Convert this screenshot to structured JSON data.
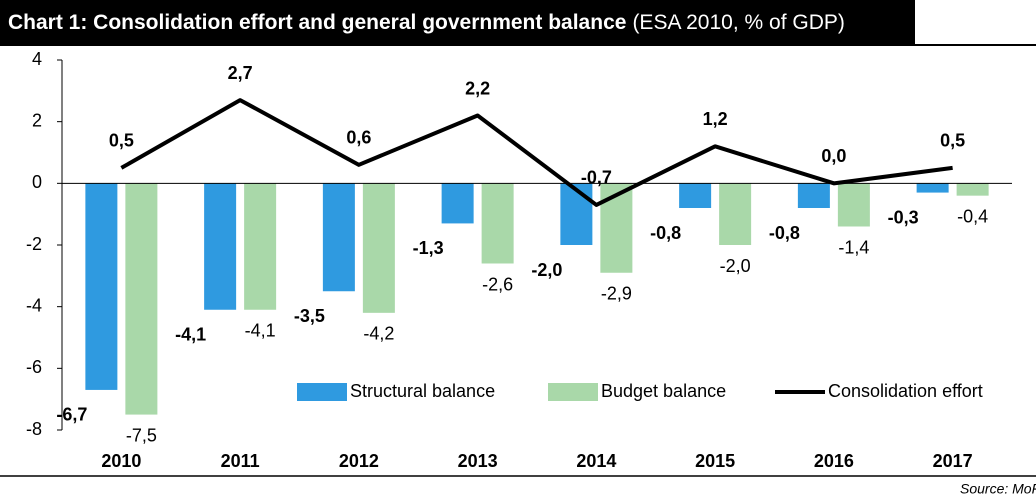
{
  "chart_data": {
    "type": "bar-line",
    "title": "Chart 1: Consolidation effort and general government balance",
    "subtitle": "(ESA 2010, % of GDP)",
    "source": "Source: MoF SR",
    "categories": [
      "2010",
      "2011",
      "2012",
      "2013",
      "2014",
      "2015",
      "2016",
      "2017"
    ],
    "ylim": [
      -8,
      4
    ],
    "yticks": [
      -8,
      -6,
      -4,
      -2,
      0,
      2,
      4
    ],
    "series": [
      {
        "name": "Structural balance",
        "kind": "bar",
        "color": "#2f9ae0",
        "values": [
          -6.7,
          -4.1,
          -3.5,
          -1.3,
          -2.0,
          -0.8,
          -0.8,
          -0.3
        ],
        "value_labels": [
          "-6,7",
          "-4,1",
          "-3,5",
          "-1,3",
          "-2,0",
          "-0,8",
          "-0,8",
          "-0,3"
        ]
      },
      {
        "name": "Budget balance",
        "kind": "bar",
        "color": "#a9d8a9",
        "values": [
          -7.5,
          -4.1,
          -4.2,
          -2.6,
          -2.9,
          -2.0,
          -1.4,
          -0.4
        ],
        "value_labels": [
          "-7,5",
          "-4,1",
          "-4,2",
          "-2,6",
          "-2,9",
          "-2,0",
          "-1,4",
          "-0,4"
        ]
      },
      {
        "name": "Consolidation effort",
        "kind": "line",
        "color": "#000000",
        "values": [
          0.5,
          2.7,
          0.6,
          2.2,
          -0.7,
          1.2,
          0.0,
          0.5
        ],
        "value_labels": [
          "0,5",
          "2,7",
          "0,6",
          "2,2",
          "-0,7",
          "1,2",
          "0,0",
          "0,5"
        ]
      }
    ]
  }
}
